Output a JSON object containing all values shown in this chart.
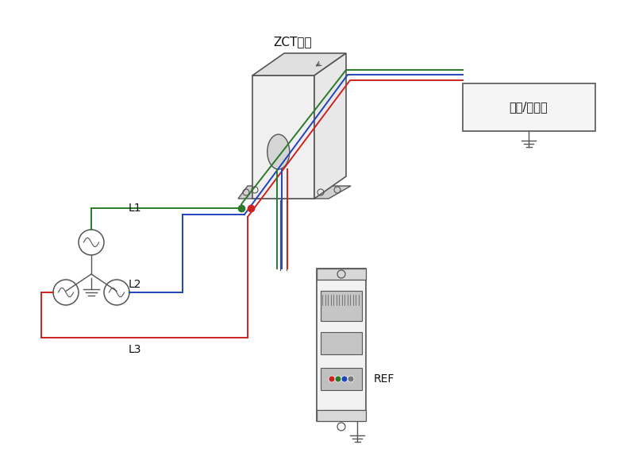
{
  "bg_color": "#ffffff",
  "line_green": "#2a7a2a",
  "line_blue": "#2244bb",
  "line_red": "#cc2222",
  "line_gray": "#999999",
  "line_dark": "#555555",
  "text_color": "#111111",
  "title_zct": "ZCT模块",
  "title_device": "设备/逆变器",
  "label_l1": "L1",
  "label_l2": "L2",
  "label_l3": "L3",
  "label_ref": "REF",
  "fig_w": 8.0,
  "fig_h": 5.84
}
